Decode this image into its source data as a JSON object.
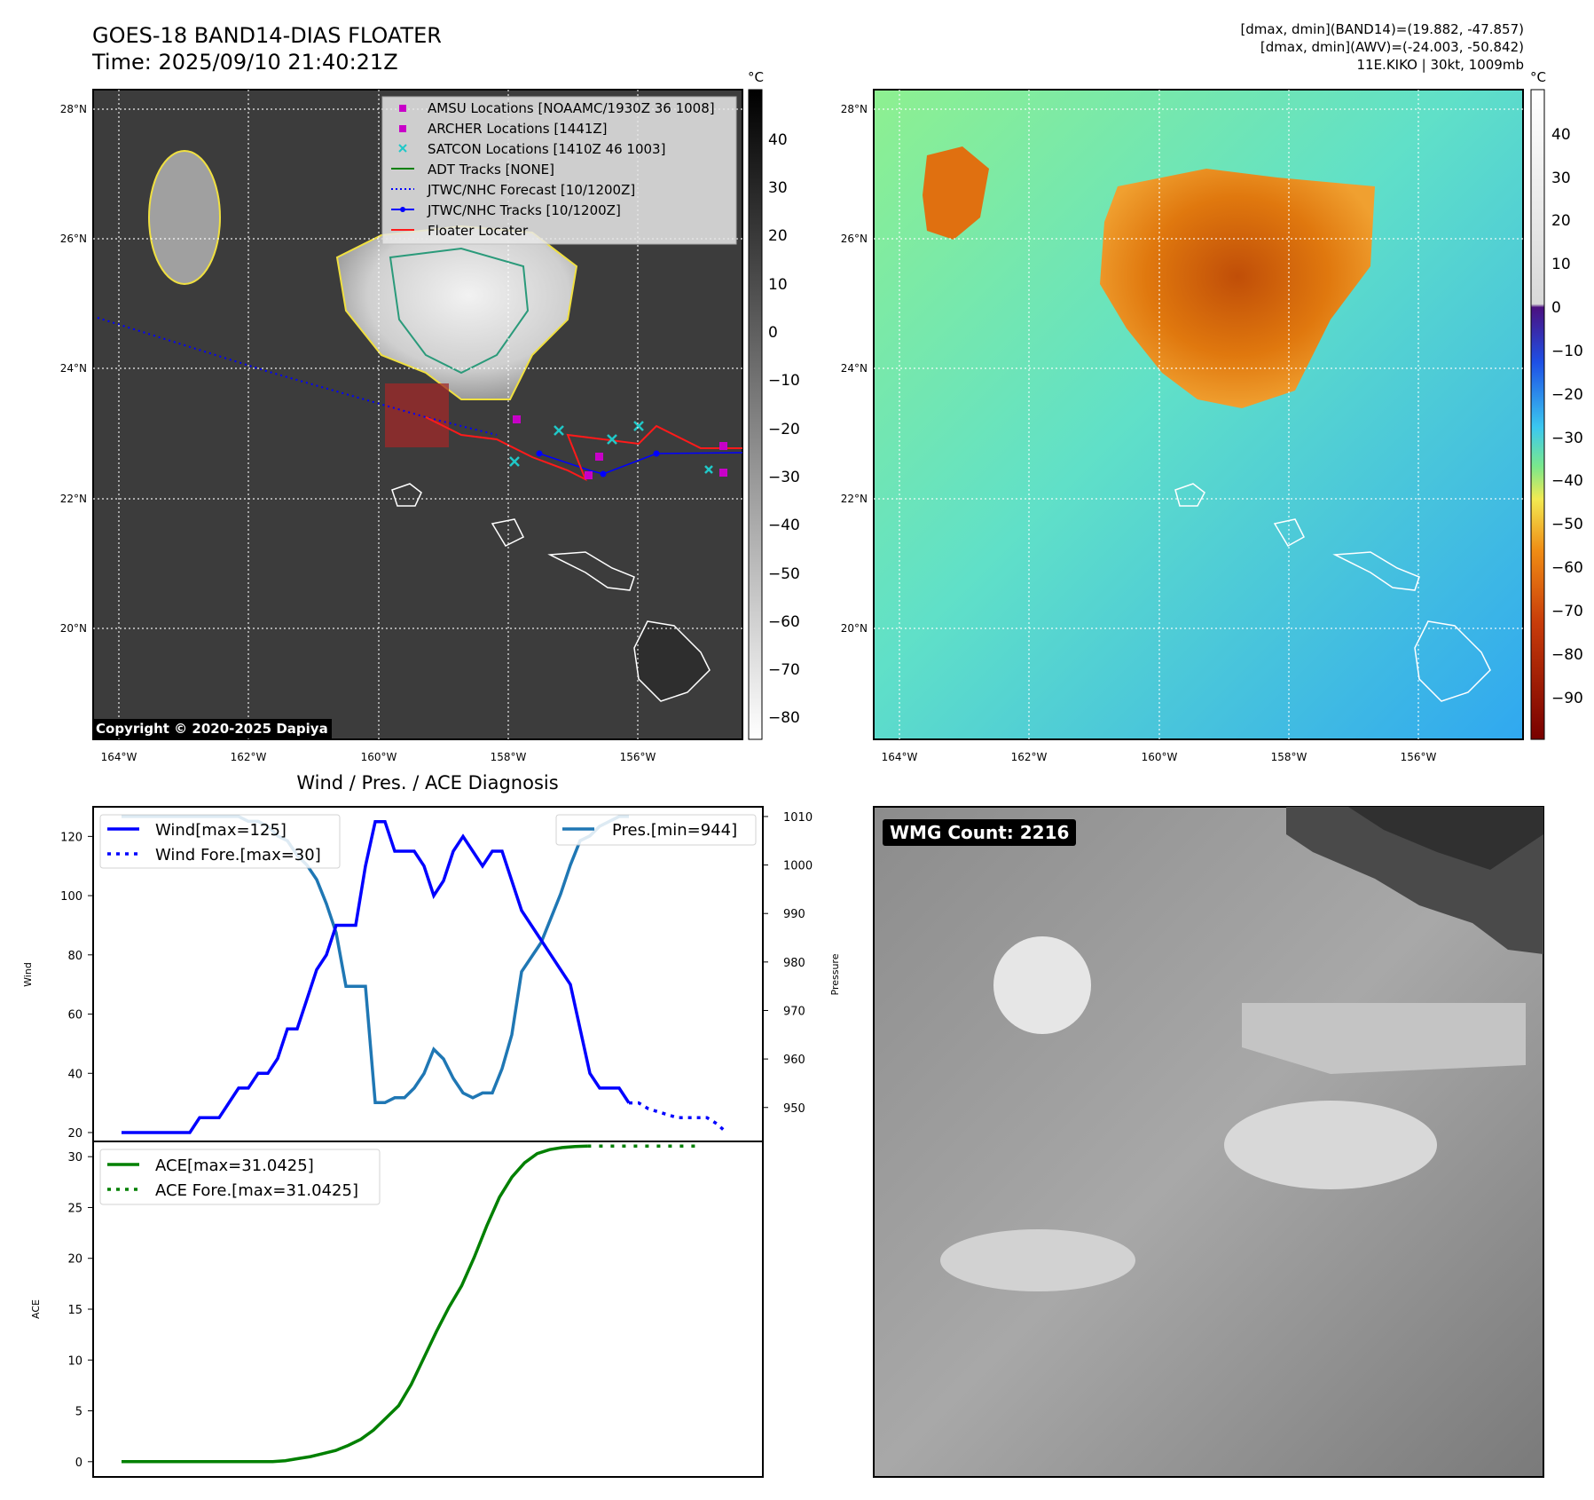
{
  "header": {
    "title": "GOES-18 BAND14-DIAS FLOATER",
    "time": "Time: 2025/09/10 21:40:21Z",
    "info1": "[dmax, dmin](BAND14)=(19.882, -47.857)",
    "info2": "[dmax, dmin](AWV)=(-24.003, -50.842)",
    "info3": "11E.KIKO | 30kt, 1009mb"
  },
  "ir_panel": {
    "lon_labels": [
      "164°W",
      "162°W",
      "160°W",
      "158°W",
      "156°W"
    ],
    "lat_labels": [
      "28°N",
      "26°N",
      "24°N",
      "22°N",
      "20°N"
    ],
    "copyright": "Copyright © 2020-2025 Dapiya",
    "colorbar_unit": "°C",
    "colorbar_ticks": [
      "40",
      "30",
      "20",
      "10",
      "0",
      "−10",
      "−20",
      "−30",
      "−40",
      "−50",
      "−60",
      "−70",
      "−80"
    ],
    "legend": [
      "AMSU Locations [NOAAMC/1930Z 36 1008]",
      "ARCHER Locations [1441Z]",
      "SATCON Locations [1410Z 46 1003]",
      "ADT Tracks [NONE]",
      "JTWC/NHC Forecast [10/1200Z]",
      "JTWC/NHC Tracks [10/1200Z]",
      "Floater Locater"
    ]
  },
  "wv_panel": {
    "lon_labels": [
      "164°W",
      "162°W",
      "160°W",
      "158°W",
      "156°W"
    ],
    "lat_labels": [
      "28°N",
      "26°N",
      "24°N",
      "22°N",
      "20°N"
    ],
    "colorbar_unit": "°C",
    "colorbar_ticks": [
      "40",
      "30",
      "20",
      "10",
      "0",
      "−10",
      "−20",
      "−30",
      "−40",
      "−50",
      "−60",
      "−70",
      "−80",
      "−90"
    ]
  },
  "wmg_panel": {
    "label": "WMG Count: 2216"
  },
  "chart_data": [
    {
      "type": "line",
      "title": "Wind / Pres. / ACE Diagnosis",
      "ylabel": "Wind",
      "ylabel2": "Pressure",
      "ylim": [
        17,
        130
      ],
      "y2lim": [
        943,
        1012
      ],
      "yticks": [
        20,
        40,
        60,
        80,
        100,
        120
      ],
      "y2ticks": [
        950,
        960,
        970,
        980,
        990,
        1000,
        1010
      ],
      "series": [
        {
          "name": "Wind[max=125]",
          "color": "#0000ff",
          "style": "solid",
          "values": [
            20,
            20,
            20,
            20,
            20,
            20,
            20,
            20,
            25,
            25,
            25,
            30,
            35,
            35,
            40,
            40,
            45,
            55,
            55,
            65,
            75,
            80,
            90,
            90,
            90,
            110,
            125,
            125,
            115,
            115,
            115,
            110,
            100,
            105,
            115,
            120,
            115,
            110,
            115,
            115,
            105,
            95,
            90,
            85,
            80,
            75,
            70,
            55,
            40,
            35,
            35,
            35,
            30
          ]
        },
        {
          "name": "Wind Fore.[max=30]",
          "color": "#0000ff",
          "style": "dotted",
          "x_start": 52,
          "values": [
            30,
            30,
            28,
            27,
            26,
            25,
            25,
            25,
            25,
            23,
            20
          ]
        },
        {
          "name": "Pres.[min=944]",
          "color": "#1f77b4",
          "style": "solid",
          "values": [
            1010,
            1010,
            1010,
            1010,
            1010,
            1010,
            1010,
            1010,
            1010,
            1010,
            1010,
            1010,
            1010,
            1009,
            1009,
            1008,
            1006,
            1005,
            1002,
            1000,
            997,
            992,
            986,
            975,
            975,
            975,
            951,
            951,
            952,
            952,
            954,
            957,
            962,
            960,
            956,
            953,
            952,
            953,
            953,
            958,
            965,
            978,
            981,
            984,
            989,
            994,
            1000,
            1005,
            1006,
            1008,
            1009,
            1010,
            1010
          ]
        }
      ]
    },
    {
      "type": "line",
      "ylabel": "ACE",
      "ylim": [
        -1.5,
        31.5
      ],
      "yticks": [
        0,
        5,
        10,
        15,
        20,
        25,
        30
      ],
      "series": [
        {
          "name": "ACE[max=31.0425]",
          "color": "#008000",
          "style": "solid",
          "values": [
            0,
            0,
            0,
            0,
            0,
            0,
            0,
            0,
            0,
            0,
            0,
            0,
            0,
            0.1,
            0.3,
            0.5,
            0.8,
            1.1,
            1.6,
            2.2,
            3.1,
            4.3,
            5.5,
            7.6,
            10.2,
            12.8,
            15.2,
            17.3,
            20.1,
            23.2,
            26.0,
            28.0,
            29.4,
            30.3,
            30.7,
            30.9,
            31.0,
            31.04
          ]
        },
        {
          "name": "ACE Fore.[max=31.0425]",
          "color": "#008000",
          "style": "dotted",
          "x_start": 37,
          "values": [
            31.04,
            31.04,
            31.04,
            31.04,
            31.04,
            31.04,
            31.04,
            31.04,
            31.04,
            31.04
          ]
        }
      ]
    }
  ]
}
